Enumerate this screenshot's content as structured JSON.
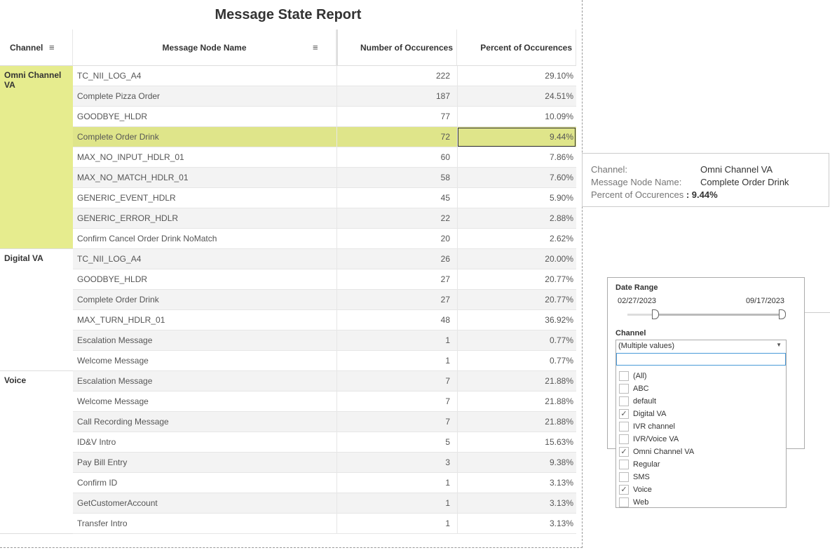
{
  "title": "Message State Report",
  "headers": {
    "channel": "Channel",
    "node": "Message Node Name",
    "count": "Number of Occurences",
    "percent": "Percent of Occurences"
  },
  "groups": [
    {
      "channel": "Omni Channel VA",
      "rows": [
        [
          "TC_NII_LOG_A4",
          "222",
          "29.10%"
        ],
        [
          "Complete Pizza Order",
          "187",
          "24.51%"
        ],
        [
          "GOODBYE_HLDR",
          "77",
          "10.09%"
        ],
        [
          "Complete Order Drink",
          "72",
          "9.44%"
        ],
        [
          "MAX_NO_INPUT_HDLR_01",
          "60",
          "7.86%"
        ],
        [
          "MAX_NO_MATCH_HDLR_01",
          "58",
          "7.60%"
        ],
        [
          "GENERIC_EVENT_HDLR",
          "45",
          "5.90%"
        ],
        [
          "GENERIC_ERROR_HDLR",
          "22",
          "2.88%"
        ],
        [
          "Confirm Cancel Order Drink NoMatch",
          "20",
          "2.62%"
        ]
      ]
    },
    {
      "channel": "Digital VA",
      "rows": [
        [
          "TC_NII_LOG_A4",
          "26",
          "20.00%"
        ],
        [
          "GOODBYE_HLDR",
          "27",
          "20.77%"
        ],
        [
          "Complete Order Drink",
          "27",
          "20.77%"
        ],
        [
          "MAX_TURN_HDLR_01",
          "48",
          "36.92%"
        ],
        [
          "Escalation Message",
          "1",
          "0.77%"
        ],
        [
          "Welcome Message",
          "1",
          "0.77%"
        ]
      ]
    },
    {
      "channel": "Voice",
      "rows": [
        [
          "Escalation Message",
          "7",
          "21.88%"
        ],
        [
          "Welcome Message",
          "7",
          "21.88%"
        ],
        [
          "Call Recording Message",
          "7",
          "21.88%"
        ],
        [
          "ID&V Intro",
          "5",
          "15.63%"
        ],
        [
          "Pay Bill Entry",
          "3",
          "9.38%"
        ],
        [
          "Confirm ID",
          "1",
          "3.13%"
        ],
        [
          "GetCustomerAccount",
          "1",
          "3.13%"
        ],
        [
          "Transfer Intro",
          "1",
          "3.13%"
        ]
      ]
    }
  ],
  "tooltip": {
    "channel_label": "Channel:",
    "channel": "Omni Channel VA",
    "node_label": "Message Node Name:",
    "node": "Complete Order Drink",
    "pct_label": "Percent of Occurences",
    "pct": ": 9.44%"
  },
  "filters": {
    "date_label": "Date Range",
    "start": "02/27/2023",
    "end": "09/17/2023",
    "channel_label": "Channel",
    "selected": "(Multiple values)",
    "search": "",
    "options": [
      {
        "label": "(All)",
        "checked": false
      },
      {
        "label": "ABC",
        "checked": false
      },
      {
        "label": "default",
        "checked": false
      },
      {
        "label": "Digital VA",
        "checked": true
      },
      {
        "label": "IVR channel",
        "checked": false
      },
      {
        "label": "IVR/Voice VA",
        "checked": false
      },
      {
        "label": "Omni Channel VA",
        "checked": true
      },
      {
        "label": "Regular",
        "checked": false
      },
      {
        "label": "SMS",
        "checked": false
      },
      {
        "label": "Voice",
        "checked": true
      },
      {
        "label": "Web",
        "checked": false
      }
    ]
  },
  "colors": {
    "highlight": "#e6ec8e",
    "selected_row": "#dfe58a",
    "stripe": "#f3f3f3"
  }
}
